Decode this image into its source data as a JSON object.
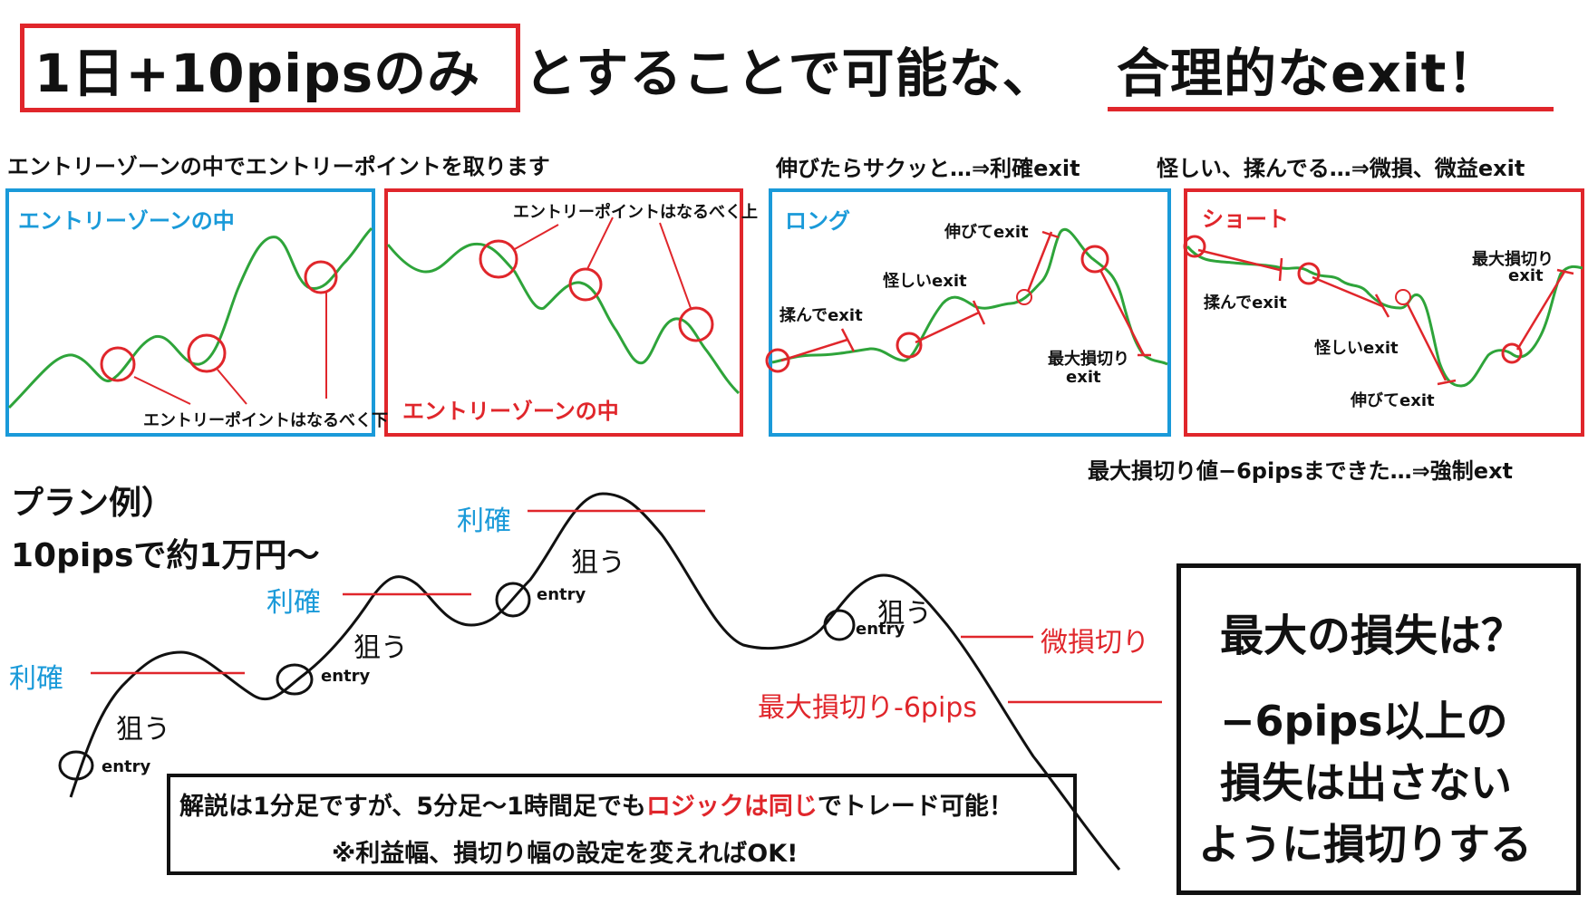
{
  "title": {
    "boxed": "1日+10pipsのみ",
    "middle": "とすることで可能な、",
    "underlined": "合理的なexit！"
  },
  "captions": {
    "entry": "エントリーゾーンの中でエントリーポイントを取ります",
    "profit": "伸びたらサクッと…⇒利確exit",
    "loss": "怪しい、揉んでる…⇒微損、微益exit",
    "forced": "最大損切り値−6pipsまできた…⇒強制ext"
  },
  "panels": {
    "p1": {
      "title": "エントリーゾーンの中",
      "note": "エントリーポイントはなるべく下"
    },
    "p2": {
      "title": "エントリーゾーンの中",
      "note": "エントリーポイントはなるべく上"
    },
    "p3": {
      "title": "ロング",
      "labels": [
        "揉んでexit",
        "怪しいexit",
        "伸びてexit",
        "最大損切り",
        "exit"
      ]
    },
    "p4": {
      "title": "ショート",
      "labels": [
        "最大損切り",
        "exit",
        "揉んでexit",
        "怪しいexit",
        "伸びてexit"
      ]
    }
  },
  "plan": {
    "title": "プラン例）",
    "subtitle": "10pipsで約1万円〜",
    "take_profit": "利確",
    "aim": "狙う",
    "entry": "entry",
    "small_loss": "微損切り",
    "max_loss": "最大損切り-6pips"
  },
  "note_box": {
    "line1_pre": "解説は1分足ですが、5分足〜1時間足でも",
    "line1_red": "ロジックは同じ",
    "line1_post": "でトレード可能！",
    "line2": "※利益幅、損切り幅の設定を変えればOK!"
  },
  "loss_box": {
    "question": "最大の損失は？",
    "line1": "−6pips以上の",
    "line2": "損失は出さない",
    "line3": "ように損切りする"
  },
  "colors": {
    "blue": "#1a9ad9",
    "red": "#e0262b",
    "green": "#2ea43a",
    "black": "#111111"
  }
}
